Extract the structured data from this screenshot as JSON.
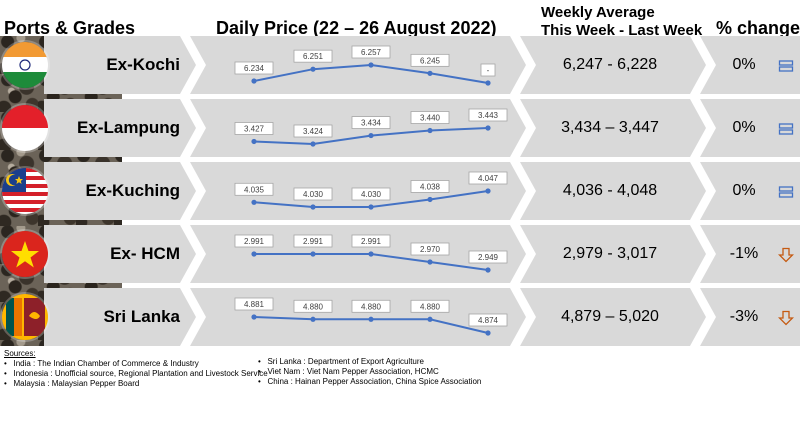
{
  "headers": {
    "ports": "Ports & Grades",
    "daily": "Daily Price (22 – 26 August 2022)",
    "weekly_line1": "Weekly Average",
    "weekly_line2": "This Week - Last Week",
    "change": "% change"
  },
  "colors": {
    "line": "#4472c4",
    "band": "#d9d9d9",
    "up_down_icon": "#c55a11",
    "neutral_icon": "#4472c4"
  },
  "rows": [
    {
      "port": "Ex-Kochi",
      "flag": "india-flag-icon",
      "weekly": "6,247 - 6,228",
      "change": "0%",
      "icon": "equal-icon"
    },
    {
      "port": "Ex-Lampung",
      "flag": "indonesia-flag-icon",
      "weekly": "3,434 – 3,447",
      "change": "0%",
      "icon": "equal-icon"
    },
    {
      "port": "Ex-Kuching",
      "flag": "malaysia-flag-icon",
      "weekly": "4,036 - 4,048",
      "change": "0%",
      "icon": "equal-icon"
    },
    {
      "port": "Ex- HCM",
      "flag": "vietnam-flag-icon",
      "weekly": "2,979 - 3,017",
      "change": "-1%",
      "icon": "down-arrow-icon"
    },
    {
      "port": "Sri Lanka",
      "flag": "srilanka-flag-icon",
      "weekly": "4,879 – 5,020",
      "change": "-3%",
      "icon": "down-arrow-icon"
    }
  ],
  "chart_data": {
    "type": "line",
    "title": "Daily Price (22 – 26 August 2022)",
    "series": [
      {
        "name": "Ex-Kochi",
        "values": [
          6234,
          6251,
          6257,
          6245,
          null
        ],
        "labels": [
          "6.234",
          "6.251",
          "6.257",
          "6.245",
          "-"
        ]
      },
      {
        "name": "Ex-Lampung",
        "values": [
          3427,
          3424,
          3434,
          3440,
          3443
        ],
        "labels": [
          "3.427",
          "3.424",
          "3.434",
          "3.440",
          "3.443"
        ]
      },
      {
        "name": "Ex-Kuching",
        "values": [
          4035,
          4030,
          4030,
          4038,
          4047
        ],
        "labels": [
          "4.035",
          "4.030",
          "4.030",
          "4.038",
          "4.047"
        ]
      },
      {
        "name": "Ex- HCM",
        "values": [
          2991,
          2991,
          2991,
          2970,
          2949
        ],
        "labels": [
          "2.991",
          "2.991",
          "2.991",
          "2.970",
          "2.949"
        ]
      },
      {
        "name": "Sri Lanka",
        "values": [
          4881,
          4880,
          4880,
          4880,
          4874
        ],
        "labels": [
          "4.881",
          "4.880",
          "4.880",
          "4.880",
          "4.874"
        ]
      }
    ]
  },
  "sources": {
    "title": "Sources:",
    "left": [
      "India : The Indian Chamber of Commerce & Industry",
      "Indonesia : Unofficial source, Regional Plantation and Livestock Service",
      "Malaysia : Malaysian Pepper Board"
    ],
    "right": [
      "Sri Lanka : Department of Export Agriculture",
      "Viet Nam : Viet Nam Pepper Association, HCMC",
      "China : Hainan Pepper Association, China Spice Association"
    ]
  }
}
